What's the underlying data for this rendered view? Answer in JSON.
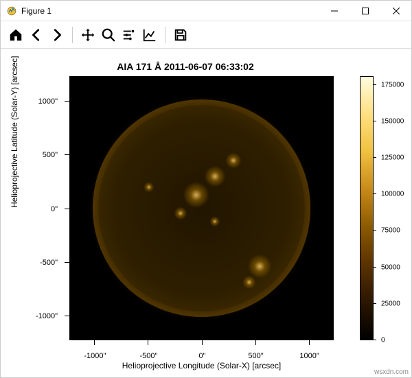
{
  "window": {
    "title": "Figure 1",
    "icon_name": "matplotlib-icon"
  },
  "chart": {
    "type": "heatmap",
    "title": "AIA 171 Å 2011-06-07 06:33:02",
    "xlabel": "Helioprojective Longitude (Solar-X) [arcsec]",
    "ylabel": "Helioprojective Latitude (Solar-Y) [arcsec]",
    "xlim": [
      -1227,
      1227
    ],
    "ylim": [
      -1227,
      1227
    ],
    "xticks": [
      -1000,
      -500,
      0,
      500,
      1000
    ],
    "xtick_labels": [
      "-1000\"",
      "-500\"",
      "0\"",
      "500\"",
      "1000\""
    ],
    "yticks": [
      -1000,
      -500,
      0,
      500,
      1000
    ],
    "ytick_labels": [
      "-1000\"",
      "-500\"",
      "0\"",
      "500\"",
      "1000\""
    ],
    "colorbar": {
      "ticks": [
        0,
        25000,
        50000,
        75000,
        100000,
        125000,
        150000,
        175000
      ],
      "tick_labels": [
        "0",
        "25000",
        "50000",
        "75000",
        "100000",
        "125000",
        "150000",
        "175000"
      ],
      "vmin": 0,
      "vmax": 180000,
      "gradient_stops": [
        "#000000",
        "#2b1600",
        "#5a3200",
        "#8b5a00",
        "#c78a1a",
        "#f0c040",
        "#ffe080",
        "#fffce0"
      ]
    },
    "background_color": "#000000",
    "title_fontsize": 14,
    "label_fontsize": 12,
    "tick_fontsize": 11,
    "sun_radius_arcsec": 960,
    "sun_disk_color": "#221500",
    "sun_limb_color": "#553800",
    "active_region_color": "#ffd070"
  },
  "watermark": "wsxdn.com"
}
